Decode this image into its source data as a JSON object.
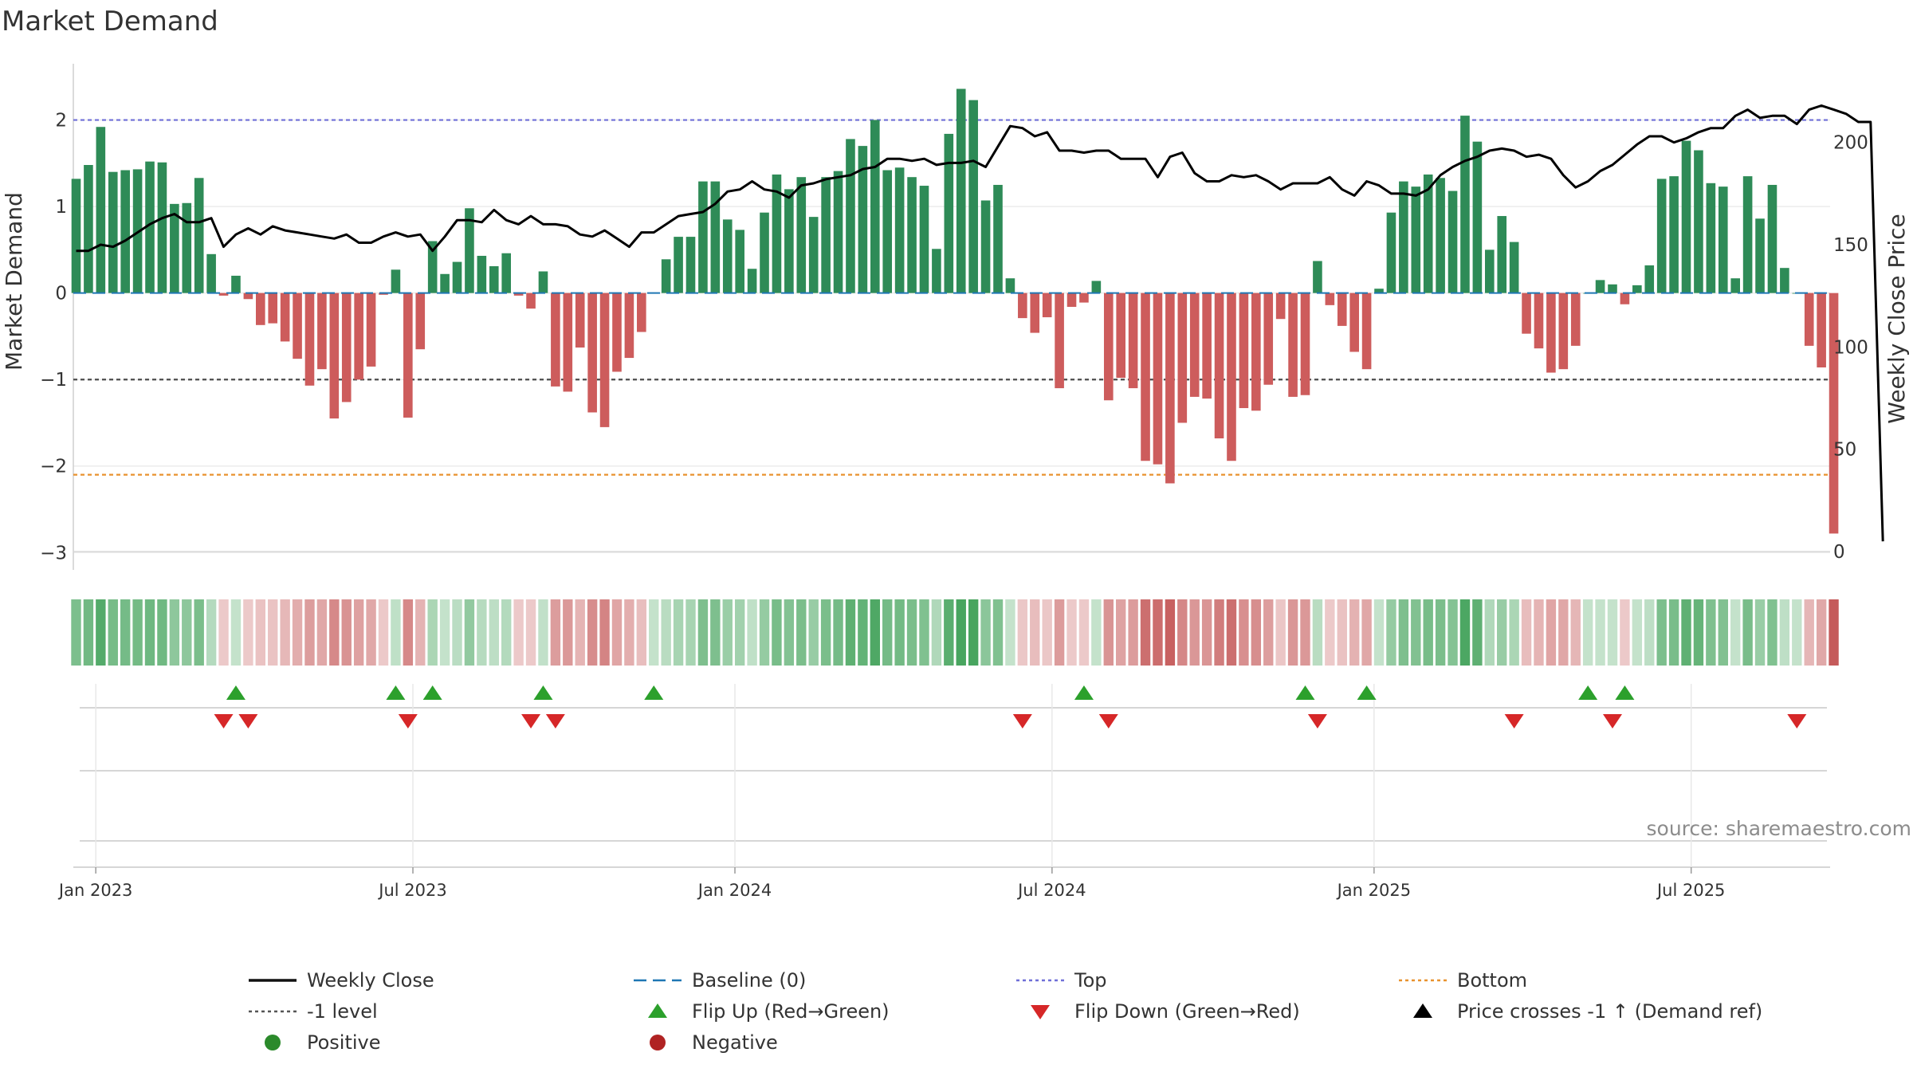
{
  "chart_data": {
    "type": "bar",
    "title": "Market Demand",
    "ylabel_left": "Market Demand",
    "ylabel_right": "Weekly Close Price",
    "ylim_left": [
      -3.2,
      2.65
    ],
    "ylim_right": [
      0,
      218
    ],
    "left_ticks": [
      {
        "value": 2,
        "label": "2"
      },
      {
        "value": 1,
        "label": "1"
      },
      {
        "value": 0,
        "label": "0"
      },
      {
        "value": -1,
        "label": "−1"
      },
      {
        "value": -2,
        "label": "−2"
      },
      {
        "value": -3,
        "label": "−3"
      }
    ],
    "right_ticks": [
      {
        "value": 200,
        "label": "200"
      },
      {
        "value": 150,
        "label": "150"
      },
      {
        "value": 100,
        "label": "100"
      },
      {
        "value": 50,
        "label": "50"
      },
      {
        "value": 0,
        "label": "0"
      }
    ],
    "x_ticks": [
      {
        "week": 1.6,
        "label": "Jan 2023"
      },
      {
        "week": 27.4,
        "label": "Jul 2023"
      },
      {
        "week": 53.6,
        "label": "Jan 2024"
      },
      {
        "week": 79.4,
        "label": "Jul 2024"
      },
      {
        "week": 105.6,
        "label": "Jan 2025"
      },
      {
        "week": 131.4,
        "label": "Jul 2025"
      }
    ],
    "reference_lines": {
      "top": 2.0,
      "minus_one": -1.0,
      "bottom": -2.1,
      "baseline": 0
    },
    "demand": [
      1.32,
      1.48,
      1.92,
      1.4,
      1.42,
      1.43,
      1.52,
      1.51,
      1.03,
      1.04,
      1.33,
      0.45,
      -0.03,
      0.2,
      -0.07,
      -0.37,
      -0.35,
      -0.56,
      -0.76,
      -1.07,
      -0.88,
      -1.45,
      -1.26,
      -1.0,
      -0.85,
      -0.02,
      0.27,
      -1.44,
      -0.65,
      0.6,
      0.22,
      0.36,
      0.98,
      0.43,
      0.31,
      0.46,
      -0.03,
      -0.18,
      0.25,
      -1.08,
      -1.14,
      -0.63,
      -1.38,
      -1.55,
      -0.91,
      -0.75,
      -0.45,
      0.0,
      0.39,
      0.65,
      0.65,
      1.29,
      1.29,
      0.85,
      0.73,
      0.28,
      0.93,
      1.37,
      1.2,
      1.34,
      0.88,
      1.34,
      1.41,
      1.78,
      1.7,
      2.0,
      1.42,
      1.45,
      1.34,
      1.24,
      0.51,
      1.84,
      2.36,
      2.23,
      1.07,
      1.25,
      0.17,
      -0.29,
      -0.46,
      -0.28,
      -1.1,
      -0.16,
      -0.11,
      0.14,
      -1.24,
      -0.98,
      -1.1,
      -1.94,
      -1.98,
      -2.2,
      -1.5,
      -1.2,
      -1.22,
      -1.68,
      -1.94,
      -1.33,
      -1.36,
      -1.06,
      -0.3,
      -1.2,
      -1.18,
      0.37,
      -0.14,
      -0.38,
      -0.68,
      -0.88,
      0.05,
      0.93,
      1.29,
      1.23,
      1.37,
      1.33,
      1.18,
      2.05,
      1.75,
      0.5,
      0.89,
      0.59,
      -0.47,
      -0.64,
      -0.92,
      -0.88,
      -0.61,
      0.0,
      0.15,
      0.1,
      -0.13,
      0.09,
      0.32,
      1.32,
      1.35,
      1.76,
      1.65,
      1.27,
      1.23,
      0.17,
      1.35,
      0.86,
      1.25,
      0.29,
      0.0,
      -0.61,
      -0.86,
      -2.78
    ],
    "weekly_close": [
      147,
      147,
      150,
      149,
      152,
      156,
      160,
      163,
      165,
      161,
      161,
      163,
      149,
      155,
      158,
      155,
      159,
      157,
      156,
      155,
      154,
      153,
      155,
      151,
      151,
      154,
      156,
      154,
      155,
      147,
      154,
      162,
      162,
      161,
      167,
      162,
      160,
      164,
      160,
      160,
      159,
      155,
      154,
      157,
      153,
      149,
      156,
      156,
      160,
      164,
      165,
      166,
      170,
      176,
      177,
      181,
      177,
      176,
      173,
      179,
      180,
      182,
      183,
      184,
      187,
      188,
      192,
      192,
      191,
      192,
      189,
      190,
      190,
      191,
      188,
      198,
      208,
      207,
      203,
      205,
      196,
      196,
      195,
      196,
      196,
      192,
      192,
      192,
      183,
      193,
      195,
      185,
      181,
      181,
      184,
      183,
      184,
      181,
      177,
      180,
      180,
      180,
      183,
      177,
      174,
      181,
      179,
      175,
      175,
      174,
      177,
      184,
      188,
      191,
      193,
      196,
      197,
      196,
      193,
      194,
      192,
      184,
      178,
      181,
      186,
      189,
      194,
      199,
      203,
      203,
      200,
      202,
      205,
      207,
      207,
      213,
      216,
      212,
      213,
      213,
      209,
      216,
      218,
      216,
      214,
      210,
      210,
      5
    ],
    "color_strip": [
      0.62,
      0.7,
      0.91,
      0.66,
      0.67,
      0.68,
      0.72,
      0.71,
      0.49,
      0.49,
      0.63,
      0.21,
      -0.1,
      0.1,
      -0.1,
      -0.16,
      -0.15,
      -0.24,
      -0.33,
      -0.46,
      -0.38,
      -0.62,
      -0.54,
      -0.43,
      -0.37,
      -0.1,
      0.13,
      -0.62,
      -0.28,
      0.28,
      0.1,
      0.17,
      0.46,
      0.2,
      0.15,
      0.22,
      -0.1,
      -0.1,
      0.12,
      -0.46,
      -0.49,
      -0.27,
      -0.59,
      -0.66,
      -0.39,
      -0.32,
      -0.19,
      0.1,
      0.18,
      0.31,
      0.31,
      0.61,
      0.61,
      0.4,
      0.35,
      0.13,
      0.44,
      0.65,
      0.57,
      0.63,
      0.42,
      0.63,
      0.67,
      0.84,
      0.8,
      0.95,
      0.67,
      0.69,
      0.63,
      0.59,
      0.24,
      0.87,
      1.0,
      1.0,
      0.51,
      0.59,
      0.1,
      -0.12,
      -0.2,
      -0.12,
      -0.47,
      -0.1,
      -0.1,
      0.1,
      -0.53,
      -0.42,
      -0.47,
      -0.83,
      -0.85,
      -0.94,
      -0.64,
      -0.51,
      -0.52,
      -0.72,
      -0.83,
      -0.57,
      -0.58,
      -0.45,
      -0.13,
      -0.51,
      -0.5,
      0.18,
      -0.1,
      -0.16,
      -0.29,
      -0.38,
      0.1,
      0.44,
      0.61,
      0.58,
      0.65,
      0.63,
      0.56,
      0.97,
      0.83,
      0.24,
      0.42,
      0.28,
      -0.2,
      -0.27,
      -0.39,
      -0.38,
      -0.26,
      0.1,
      0.1,
      0.1,
      -0.1,
      0.1,
      0.15,
      0.62,
      0.64,
      0.83,
      0.78,
      0.6,
      0.58,
      0.1,
      0.64,
      0.41,
      0.59,
      0.14,
      0.1,
      -0.26,
      -0.37,
      -1.0
    ],
    "flip_up_weeks": [
      13,
      26,
      29,
      38,
      47,
      82,
      100,
      105,
      123,
      126
    ],
    "flip_down_weeks": [
      12,
      14,
      27,
      37,
      39,
      77,
      84,
      101,
      117,
      125,
      140
    ],
    "colors": {
      "positive_bar": "#2e8b57",
      "negative_bar": "#cd5c5c",
      "price_line": "#000000",
      "top_line": "#6f6fd8",
      "bottom_line": "#e8922e",
      "minus_one_line": "#555555",
      "baseline_line": "#1f77b4",
      "flip_up": "#2ca02c",
      "flip_down": "#d62728",
      "positive_dot": "#2b8a2b",
      "negative_dot": "#b02323",
      "strip_green": "#48a55f",
      "strip_red": "#c55a5a"
    }
  },
  "source_note": "source: sharemaestro.com",
  "legend": [
    {
      "key": "weekly-close",
      "label": "Weekly Close",
      "marker": "line",
      "color": "#111111",
      "dash": ""
    },
    {
      "key": "baseline",
      "label": "Baseline (0)",
      "marker": "line",
      "color": "#1f77b4",
      "dash": "16,8"
    },
    {
      "key": "top",
      "label": "Top",
      "marker": "line",
      "color": "#6f6fd8",
      "dash": "4,4"
    },
    {
      "key": "bottom",
      "label": "Bottom",
      "marker": "line",
      "color": "#e8922e",
      "dash": "4,4"
    },
    {
      "key": "minus-one",
      "label": "-1 level",
      "marker": "line",
      "color": "#555555",
      "dash": "4,4"
    },
    {
      "key": "flip-up",
      "label": "Flip Up (Red→Green)",
      "marker": "triangle-up",
      "color": "#2ca02c",
      "dash": ""
    },
    {
      "key": "flip-down",
      "label": "Flip Down (Green→Red)",
      "marker": "triangle-down",
      "color": "#d62728",
      "dash": ""
    },
    {
      "key": "price-cross",
      "label": "Price crosses -1 ↑ (Demand ref)",
      "marker": "triangle-up",
      "color": "#000000",
      "dash": ""
    },
    {
      "key": "positive",
      "label": "Positive",
      "marker": "dot",
      "color": "#2b8a2b",
      "dash": ""
    },
    {
      "key": "negative",
      "label": "Negative",
      "marker": "dot",
      "color": "#b02323",
      "dash": ""
    }
  ]
}
